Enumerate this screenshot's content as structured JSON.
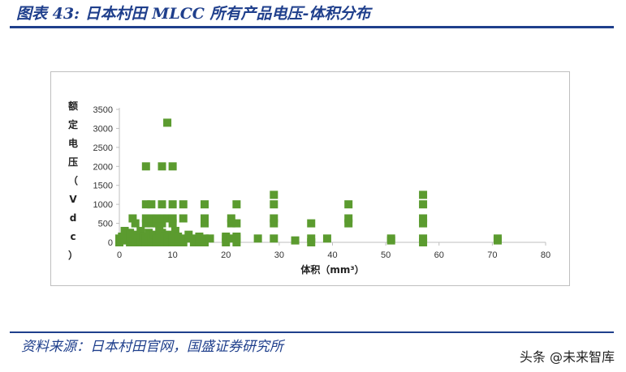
{
  "figure": {
    "title": "图表 43:  日本村田 MLCC 所有产品电压-体积分布",
    "source": "资料来源：日本村田官网，国盛证券研究所",
    "watermark": "头条 @未来智库"
  },
  "colors": {
    "accent": "#1f3f8c",
    "marker": "#5b9b2f",
    "frame": "#bfbfbf"
  },
  "chart_data": {
    "type": "scatter",
    "title": "",
    "xlabel": "体积（mm³）",
    "ylabel": "额定电压（Vdc）",
    "xlim": [
      0,
      80
    ],
    "ylim": [
      0,
      3500
    ],
    "xticks": [
      0,
      10,
      20,
      30,
      40,
      50,
      60,
      70,
      80
    ],
    "yticks": [
      0,
      500,
      1000,
      1500,
      2000,
      2500,
      3000,
      3500
    ],
    "grid": false,
    "legend": "none",
    "marker": "square",
    "series": [
      {
        "points": [
          [
            0,
            0
          ],
          [
            0,
            100
          ],
          [
            0.5,
            150
          ],
          [
            1,
            50
          ],
          [
            1,
            200
          ],
          [
            1.5,
            100
          ],
          [
            1,
            300
          ],
          [
            2,
            0
          ],
          [
            2,
            100
          ],
          [
            2,
            250
          ],
          [
            2.5,
            630
          ],
          [
            3,
            0
          ],
          [
            3,
            200
          ],
          [
            3,
            500
          ],
          [
            3.5,
            100
          ],
          [
            4,
            0
          ],
          [
            4,
            300
          ],
          [
            4.5,
            150
          ],
          [
            5,
            0
          ],
          [
            5,
            100
          ],
          [
            5,
            500
          ],
          [
            5,
            630
          ],
          [
            5,
            1000
          ],
          [
            5,
            2000
          ],
          [
            5.5,
            250
          ],
          [
            6,
            0
          ],
          [
            6,
            100
          ],
          [
            6,
            500
          ],
          [
            6,
            630
          ],
          [
            6,
            1000
          ],
          [
            6.5,
            200
          ],
          [
            7,
            0
          ],
          [
            7,
            100
          ],
          [
            7,
            500
          ],
          [
            7,
            630
          ],
          [
            7.5,
            300
          ],
          [
            8,
            0
          ],
          [
            8,
            100
          ],
          [
            8,
            250
          ],
          [
            8,
            500
          ],
          [
            8,
            630
          ],
          [
            8,
            1000
          ],
          [
            8,
            2000
          ],
          [
            8.5,
            150
          ],
          [
            9,
            0
          ],
          [
            9,
            100
          ],
          [
            9,
            630
          ],
          [
            9,
            3150
          ],
          [
            9.5,
            200
          ],
          [
            10,
            0
          ],
          [
            10,
            100
          ],
          [
            10,
            500
          ],
          [
            10,
            630
          ],
          [
            10,
            1000
          ],
          [
            10,
            2000
          ],
          [
            10.5,
            300
          ],
          [
            11,
            0
          ],
          [
            11,
            100
          ],
          [
            11,
            150
          ],
          [
            12,
            0
          ],
          [
            12,
            100
          ],
          [
            12,
            630
          ],
          [
            12,
            1000
          ],
          [
            13,
            100
          ],
          [
            13,
            200
          ],
          [
            14,
            0
          ],
          [
            14,
            100
          ],
          [
            15,
            0
          ],
          [
            15,
            100
          ],
          [
            15,
            150
          ],
          [
            16,
            0
          ],
          [
            16,
            100
          ],
          [
            16,
            500
          ],
          [
            16,
            630
          ],
          [
            16,
            1000
          ],
          [
            17,
            100
          ],
          [
            20,
            0
          ],
          [
            20,
            100
          ],
          [
            20,
            150
          ],
          [
            21,
            100
          ],
          [
            21,
            500
          ],
          [
            21,
            630
          ],
          [
            22,
            0
          ],
          [
            22,
            100
          ],
          [
            22,
            150
          ],
          [
            22,
            500
          ],
          [
            22,
            1000
          ],
          [
            26,
            100
          ],
          [
            29,
            100
          ],
          [
            29,
            500
          ],
          [
            29,
            630
          ],
          [
            29,
            1000
          ],
          [
            29,
            1250
          ],
          [
            33,
            50
          ],
          [
            36,
            0
          ],
          [
            36,
            100
          ],
          [
            36,
            500
          ],
          [
            39,
            100
          ],
          [
            43,
            500
          ],
          [
            43,
            630
          ],
          [
            43,
            1000
          ],
          [
            51,
            50
          ],
          [
            51,
            100
          ],
          [
            57,
            0
          ],
          [
            57,
            100
          ],
          [
            57,
            500
          ],
          [
            57,
            630
          ],
          [
            57,
            1000
          ],
          [
            57,
            1250
          ],
          [
            71,
            50
          ],
          [
            71,
            100
          ]
        ]
      }
    ]
  }
}
